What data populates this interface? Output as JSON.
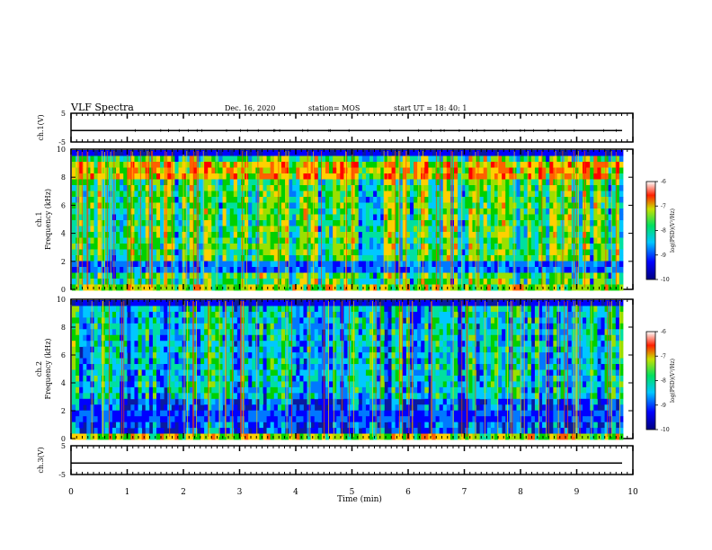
{
  "header": {
    "title": "VLF Spectra",
    "date": "Dec. 16, 2020",
    "station": "station= MOS",
    "start_ut": "start  UT  =   18: 40: 1"
  },
  "chart_data": [
    {
      "type": "line",
      "panel": "ch1-waveform",
      "ylabel": "ch.1(V)",
      "ylim": [
        -5,
        5
      ],
      "yticks": [
        "5",
        "-5"
      ],
      "series": [
        {
          "values": [
            -1,
            -1
          ]
        }
      ],
      "x": [
        0,
        10
      ]
    },
    {
      "type": "heatmap",
      "panel": "ch1-spectrogram",
      "ylabel": "ch.1\nFrequency (kHz)",
      "ylim": [
        0,
        10
      ],
      "yticks": [
        "0",
        "2",
        "4",
        "6",
        "8",
        "10"
      ],
      "colorbar": {
        "label": "log(PSD)(V²/Hz)",
        "ticks": [
          "-6",
          "-7",
          "-8",
          "-9",
          "-10"
        ],
        "range": [
          -10,
          -6
        ]
      }
    },
    {
      "type": "heatmap",
      "panel": "ch2-spectrogram",
      "ylabel": "ch.2\nFrequency (kHz)",
      "ylim": [
        0,
        10
      ],
      "yticks": [
        "0",
        "2",
        "4",
        "6",
        "8",
        "10"
      ],
      "colorbar": {
        "label": "log(PSD)(V²/Hz)",
        "ticks": [
          "-6",
          "-7",
          "-8",
          "-9",
          "-10"
        ],
        "range": [
          -10,
          -6
        ]
      }
    },
    {
      "type": "line",
      "panel": "ch3-waveform",
      "ylabel": "ch.3(V)",
      "ylim": [
        -5,
        5
      ],
      "yticks": [
        "5",
        "-5"
      ],
      "series": [
        {
          "values": [
            -1,
            -1
          ]
        }
      ],
      "x": [
        0,
        10
      ]
    }
  ],
  "xaxis": {
    "label": "Time (min)",
    "ticks": [
      "0",
      "1",
      "2",
      "3",
      "4",
      "5",
      "6",
      "7",
      "8",
      "9",
      "10"
    ],
    "range": [
      0,
      10
    ]
  },
  "colors": {
    "background": "#000080",
    "noise": "#00d000",
    "hot": "#ff0000"
  }
}
